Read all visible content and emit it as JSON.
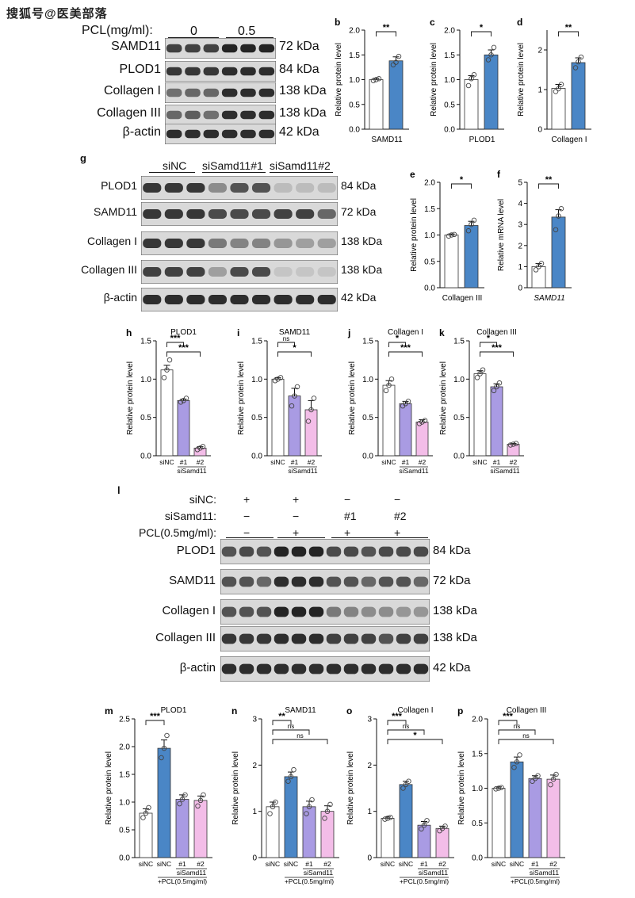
{
  "watermark": "搜狐号@医美部落",
  "colors": {
    "blue": "#4a86c6",
    "purple": "#a99be3",
    "pink": "#f3bde8",
    "white": "#ffffff"
  },
  "panel_a": {
    "header_label": "PCL(mg/ml):",
    "groups": [
      "0",
      "0.5"
    ],
    "blots": [
      {
        "name": "SAMD11",
        "kda": "72 kDa"
      },
      {
        "name": "PLOD1",
        "kda": "84 kDa"
      },
      {
        "name": "Collagen I",
        "kda": "138 kDa"
      },
      {
        "name": "Collagen III",
        "kda": "138 kDa"
      },
      {
        "name": "β-actin",
        "kda": "42 kDa"
      }
    ]
  },
  "panel_g": {
    "letter": "g",
    "groups": [
      "siNC",
      "siSamd11#1",
      "siSamd11#2"
    ],
    "blots": [
      {
        "name": "PLOD1",
        "kda": "84 kDa"
      },
      {
        "name": "SAMD11",
        "kda": "72 kDa"
      },
      {
        "name": "Collagen I",
        "kda": "138 kDa"
      },
      {
        "name": "Collagen III",
        "kda": "138 kDa"
      },
      {
        "name": "β-actin",
        "kda": "42 kDa"
      }
    ]
  },
  "panel_l": {
    "letter": "l",
    "rows": [
      {
        "label": "siNC:",
        "values": [
          "+",
          "+",
          "−",
          "−"
        ]
      },
      {
        "label": "siSamd11:",
        "values": [
          "−",
          "−",
          "#1",
          "#2"
        ]
      },
      {
        "label": "PCL(0.5mg/ml):",
        "values": [
          "−",
          "+",
          "+",
          "+"
        ]
      }
    ],
    "blots": [
      {
        "name": "PLOD1",
        "kda": "84 kDa"
      },
      {
        "name": "SAMD11",
        "kda": "72 kDa"
      },
      {
        "name": "Collagen I",
        "kda": "138 kDa"
      },
      {
        "name": "Collagen III",
        "kda": "138 kDa"
      },
      {
        "name": "β-actin",
        "kda": "42 kDa"
      }
    ]
  },
  "chart_data": [
    {
      "letter": "b",
      "type": "bar",
      "title": "",
      "ylabel": "Relative protein level",
      "ylim": [
        0,
        2.0
      ],
      "yticks": [
        "0.0",
        "0.5",
        "1.0",
        "1.5",
        "2.0"
      ],
      "xlabel": "SAMD11",
      "categories": [
        "",
        ""
      ],
      "values": [
        1.0,
        1.38
      ],
      "errors": [
        0.03,
        0.08
      ],
      "colors": [
        "#ffffff",
        "#4a86c6"
      ],
      "points": [
        [
          0.98,
          1.0,
          1.02
        ],
        [
          1.3,
          1.35,
          1.47
        ]
      ],
      "sig": [
        {
          "from": 0,
          "to": 1,
          "text": "**"
        }
      ]
    },
    {
      "letter": "c",
      "type": "bar",
      "title": "",
      "ylabel": "Relative protein level",
      "ylim": [
        0,
        2.0
      ],
      "yticks": [
        "0.0",
        "0.5",
        "1.0",
        "1.5",
        "2.0"
      ],
      "xlabel": "PLOD1",
      "categories": [
        "",
        ""
      ],
      "values": [
        1.0,
        1.5
      ],
      "errors": [
        0.08,
        0.1
      ],
      "colors": [
        "#ffffff",
        "#4a86c6"
      ],
      "points": [
        [
          0.88,
          1.02,
          1.1
        ],
        [
          1.4,
          1.5,
          1.65
        ]
      ],
      "sig": [
        {
          "from": 0,
          "to": 1,
          "text": "*"
        }
      ]
    },
    {
      "letter": "d",
      "type": "bar",
      "title": "",
      "ylabel": "Relative protein level",
      "ylim": [
        0,
        2.5
      ],
      "yticks": [
        "0",
        "1",
        "2"
      ],
      "ytickvals": [
        0,
        1,
        2
      ],
      "xlabel": "Collagen I",
      "categories": [
        "",
        ""
      ],
      "values": [
        1.03,
        1.68
      ],
      "errors": [
        0.1,
        0.12
      ],
      "colors": [
        "#ffffff",
        "#4a86c6"
      ],
      "points": [
        [
          0.95,
          1.02,
          1.13
        ],
        [
          1.55,
          1.7,
          1.82
        ]
      ],
      "sig": [
        {
          "from": 0,
          "to": 1,
          "text": "**"
        }
      ]
    },
    {
      "letter": "e",
      "type": "bar",
      "title": "",
      "ylabel": "Relative protein level",
      "ylim": [
        0,
        2.0
      ],
      "yticks": [
        "0.0",
        "0.5",
        "1.0",
        "1.5",
        "2.0"
      ],
      "xlabel": "Collagen III",
      "categories": [
        "",
        ""
      ],
      "values": [
        1.0,
        1.18
      ],
      "errors": [
        0.02,
        0.08
      ],
      "colors": [
        "#ffffff",
        "#4a86c6"
      ],
      "points": [
        [
          0.98,
          1.0,
          1.01
        ],
        [
          1.08,
          1.2,
          1.28
        ]
      ],
      "sig": [
        {
          "from": 0,
          "to": 1,
          "text": "*"
        }
      ]
    },
    {
      "letter": "f",
      "type": "bar",
      "title": "",
      "ylabel": "Relative mRNA level",
      "ylim": [
        0,
        5
      ],
      "yticks": [
        "0",
        "1",
        "2",
        "3",
        "4",
        "5"
      ],
      "xlabel": "SAMD11",
      "xlabel_italic": true,
      "categories": [
        "",
        ""
      ],
      "values": [
        1.0,
        3.35
      ],
      "errors": [
        0.15,
        0.35
      ],
      "colors": [
        "#ffffff",
        "#4a86c6"
      ],
      "points": [
        [
          0.85,
          1.0,
          1.15
        ],
        [
          2.75,
          3.4,
          3.75
        ]
      ],
      "sig": [
        {
          "from": 0,
          "to": 1,
          "text": "**"
        }
      ]
    },
    {
      "letter": "h",
      "type": "bar",
      "title": "PLOD1",
      "ylabel": "Relative protein level",
      "ylim": [
        0,
        1.5
      ],
      "yticks": [
        "0.0",
        "0.5",
        "1.0",
        "1.5"
      ],
      "categories": [
        "siNC",
        "#1",
        "#2"
      ],
      "group_label": "siSamd11",
      "values": [
        1.12,
        0.72,
        0.1
      ],
      "errors": [
        0.06,
        0.02,
        0.02
      ],
      "colors": [
        "#ffffff",
        "#a99be3",
        "#f3bde8"
      ],
      "points": [
        [
          1.02,
          1.12,
          1.25
        ],
        [
          0.7,
          0.72,
          0.75
        ],
        [
          0.08,
          0.1,
          0.12
        ]
      ],
      "sig": [
        {
          "from": 0,
          "to": 1,
          "text": "***"
        },
        {
          "from": 0,
          "to": 2,
          "text": "***"
        }
      ]
    },
    {
      "letter": "i",
      "type": "bar",
      "title": "SAMD11",
      "ylabel": "Relative protein level",
      "ylim": [
        0,
        1.5
      ],
      "yticks": [
        "0.0",
        "0.5",
        "1.0",
        "1.5"
      ],
      "categories": [
        "siNC",
        "#1",
        "#2"
      ],
      "group_label": "siSamd11",
      "values": [
        1.0,
        0.78,
        0.6
      ],
      "errors": [
        0.02,
        0.1,
        0.12
      ],
      "colors": [
        "#ffffff",
        "#a99be3",
        "#f3bde8"
      ],
      "points": [
        [
          0.98,
          1.0,
          1.02
        ],
        [
          0.65,
          0.78,
          0.9
        ],
        [
          0.45,
          0.6,
          0.75
        ]
      ],
      "sig": [
        {
          "from": 0,
          "to": 1,
          "text": "ns"
        },
        {
          "from": 0,
          "to": 2,
          "text": "*"
        }
      ]
    },
    {
      "letter": "j",
      "type": "bar",
      "title": "Collagen I",
      "ylabel": "Relative protein level",
      "ylim": [
        0,
        1.5
      ],
      "yticks": [
        "0.0",
        "0.5",
        "1.0",
        "1.5"
      ],
      "categories": [
        "siNC",
        "#1",
        "#2"
      ],
      "group_label": "siSamd11",
      "values": [
        0.92,
        0.68,
        0.44
      ],
      "errors": [
        0.06,
        0.03,
        0.03
      ],
      "colors": [
        "#ffffff",
        "#a99be3",
        "#f3bde8"
      ],
      "points": [
        [
          0.85,
          0.92,
          1.0
        ],
        [
          0.65,
          0.68,
          0.71
        ],
        [
          0.42,
          0.44,
          0.46
        ]
      ],
      "sig": [
        {
          "from": 0,
          "to": 1,
          "text": "*"
        },
        {
          "from": 0,
          "to": 2,
          "text": "***"
        }
      ]
    },
    {
      "letter": "k",
      "type": "bar",
      "title": "Collagen III",
      "ylabel": "Relative protein level",
      "ylim": [
        0,
        1.5
      ],
      "yticks": [
        "0.0",
        "0.5",
        "1.0",
        "1.5"
      ],
      "categories": [
        "siNC",
        "#1",
        "#2"
      ],
      "group_label": "siSamd11",
      "values": [
        1.07,
        0.9,
        0.15
      ],
      "errors": [
        0.04,
        0.04,
        0.01
      ],
      "colors": [
        "#ffffff",
        "#a99be3",
        "#f3bde8"
      ],
      "points": [
        [
          1.02,
          1.07,
          1.12
        ],
        [
          0.85,
          0.9,
          0.95
        ],
        [
          0.14,
          0.15,
          0.16
        ]
      ],
      "sig": [
        {
          "from": 0,
          "to": 1,
          "text": "*"
        },
        {
          "from": 0,
          "to": 2,
          "text": "***"
        }
      ]
    },
    {
      "letter": "m",
      "type": "bar",
      "title": "PLOD1",
      "ylabel": "Relative protein level",
      "ylim": [
        0,
        2.5
      ],
      "yticks": [
        "0.0",
        "0.5",
        "1.0",
        "1.5",
        "2.0",
        "2.5"
      ],
      "categories": [
        "siNC",
        "siNC",
        "#1",
        "#2"
      ],
      "group_label": "siSamd11",
      "bottom_label": "+PCL(0.5mg/ml)",
      "values": [
        0.8,
        1.97,
        1.05,
        1.03
      ],
      "errors": [
        0.08,
        0.15,
        0.08,
        0.08
      ],
      "colors": [
        "#ffffff",
        "#4a86c6",
        "#a99be3",
        "#f3bde8"
      ],
      "points": [
        [
          0.72,
          0.8,
          0.9
        ],
        [
          1.8,
          1.97,
          2.2
        ],
        [
          0.97,
          1.05,
          1.13
        ],
        [
          0.93,
          1.03,
          1.13
        ]
      ],
      "sig": [
        {
          "from": 0,
          "to": 1,
          "text": "***"
        }
      ]
    },
    {
      "letter": "n",
      "type": "bar",
      "title": "SAMD11",
      "ylabel": "Relative protein level",
      "ylim": [
        0,
        3
      ],
      "yticks": [
        "0",
        "1",
        "2",
        "3"
      ],
      "categories": [
        "siNC",
        "siNC",
        "#1",
        "#2"
      ],
      "group_label": "siSamd11",
      "bottom_label": "+PCL(0.5mg/ml)",
      "values": [
        1.1,
        1.75,
        1.1,
        1.0
      ],
      "errors": [
        0.1,
        0.1,
        0.12,
        0.12
      ],
      "colors": [
        "#ffffff",
        "#4a86c6",
        "#a99be3",
        "#f3bde8"
      ],
      "points": [
        [
          0.95,
          1.1,
          1.2
        ],
        [
          1.65,
          1.75,
          1.9
        ],
        [
          0.95,
          1.1,
          1.25
        ],
        [
          0.85,
          1.0,
          1.15
        ]
      ],
      "sig": [
        {
          "from": 0,
          "to": 1,
          "text": "**"
        },
        {
          "from": 0,
          "to": 2,
          "text": "ns"
        },
        {
          "from": 0,
          "to": 3,
          "text": "ns"
        }
      ]
    },
    {
      "letter": "o",
      "type": "bar",
      "title": "Collagen I",
      "ylabel": "Relative protein level",
      "ylim": [
        0,
        3
      ],
      "yticks": [
        "0",
        "1",
        "2",
        "3"
      ],
      "categories": [
        "siNC",
        "siNC",
        "#1",
        "#2"
      ],
      "group_label": "siSamd11",
      "bottom_label": "+PCL(0.5mg/ml)",
      "values": [
        0.85,
        1.58,
        0.7,
        0.63
      ],
      "errors": [
        0.03,
        0.07,
        0.08,
        0.05
      ],
      "colors": [
        "#ffffff",
        "#4a86c6",
        "#a99be3",
        "#f3bde8"
      ],
      "points": [
        [
          0.83,
          0.85,
          0.87
        ],
        [
          1.5,
          1.58,
          1.65
        ],
        [
          0.62,
          0.7,
          0.8
        ],
        [
          0.58,
          0.63,
          0.68
        ]
      ],
      "sig": [
        {
          "from": 0,
          "to": 1,
          "text": "***"
        },
        {
          "from": 0,
          "to": 2,
          "text": "ns"
        },
        {
          "from": 0,
          "to": 3,
          "text": "*"
        }
      ]
    },
    {
      "letter": "p",
      "type": "bar",
      "title": "Collagen III",
      "ylabel": "Relative protein level",
      "ylim": [
        0,
        2.0
      ],
      "yticks": [
        "0.0",
        "0.5",
        "1.0",
        "1.5",
        "2.0"
      ],
      "categories": [
        "siNC",
        "siNC",
        "#1",
        "#2"
      ],
      "group_label": "siSamd11",
      "bottom_label": "+PCL(0.5mg/ml)",
      "values": [
        1.0,
        1.38,
        1.14,
        1.13
      ],
      "errors": [
        0.02,
        0.07,
        0.04,
        0.06
      ],
      "colors": [
        "#ffffff",
        "#4a86c6",
        "#a99be3",
        "#f3bde8"
      ],
      "points": [
        [
          0.99,
          1.0,
          1.01
        ],
        [
          1.3,
          1.38,
          1.48
        ],
        [
          1.1,
          1.14,
          1.18
        ],
        [
          1.05,
          1.13,
          1.2
        ]
      ],
      "sig": [
        {
          "from": 0,
          "to": 1,
          "text": "***"
        },
        {
          "from": 0,
          "to": 2,
          "text": "ns"
        },
        {
          "from": 0,
          "to": 3,
          "text": "ns"
        }
      ]
    }
  ]
}
